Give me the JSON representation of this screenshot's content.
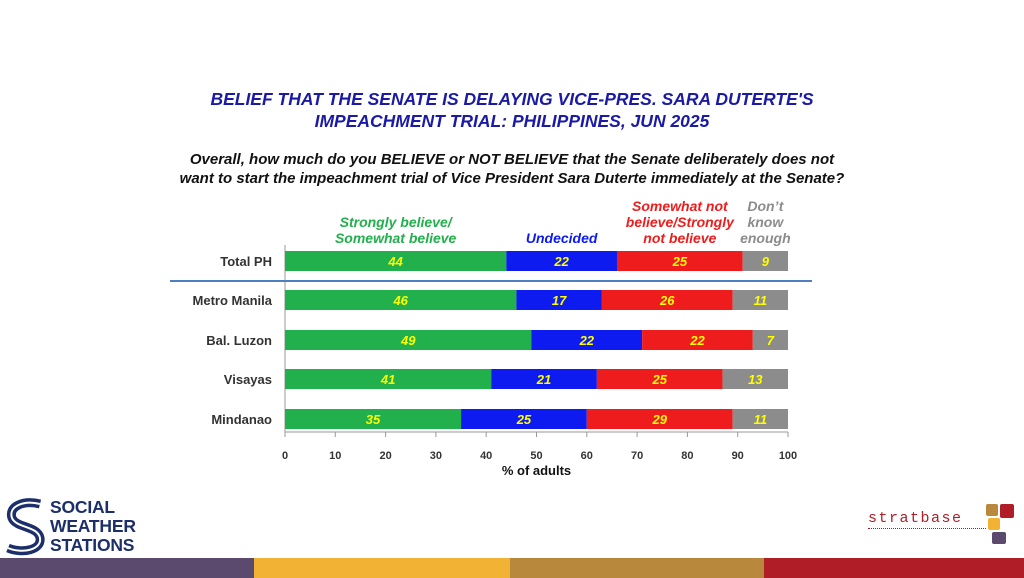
{
  "title_line1": "BELIEF THAT THE SENATE IS DELAYING VICE-PRES. SARA DUTERTE'S",
  "title_line2": "IMPEACHMENT TRIAL: PHILIPPINES, JUN 2025",
  "question_line1": "Overall, how much do you BELIEVE or NOT BELIEVE that the Senate deliberately does not",
  "question_line2": "want to start the impeachment trial of Vice President Sara Duterte immediately at the Senate?",
  "chart_data": {
    "type": "bar",
    "orientation": "horizontal",
    "stacked": true,
    "categories": [
      "Total PH",
      "Metro Manila",
      "Bal. Luzon",
      "Visayas",
      "Mindanao"
    ],
    "series": [
      {
        "name": "Strongly believe/ Somewhat believe",
        "name_lines": [
          "Strongly believe/",
          "Somewhat believe"
        ],
        "color": "#21b04b",
        "values": [
          44,
          46,
          49,
          41,
          35
        ]
      },
      {
        "name": "Undecided",
        "name_lines": [
          "Undecided"
        ],
        "color": "#0d1bf0",
        "values": [
          22,
          17,
          22,
          21,
          25
        ]
      },
      {
        "name": "Somewhat not believe/Strongly not believe",
        "name_lines": [
          "Somewhat not",
          "believe/Strongly",
          "not believe"
        ],
        "color": "#ee1c1c",
        "values": [
          25,
          26,
          22,
          25,
          29
        ]
      },
      {
        "name": "Don't know enough",
        "name_lines": [
          "Don’t",
          "know",
          "enough"
        ],
        "color": "#8c8c8c",
        "values": [
          9,
          11,
          7,
          13,
          11
        ]
      }
    ],
    "xlabel": "% of adults",
    "xlim": [
      0,
      100
    ],
    "xticks": [
      0,
      10,
      20,
      30,
      40,
      50,
      60,
      70,
      80,
      90,
      100
    ],
    "label_color": "#ffff00",
    "grid": false,
    "legend": "top, above each segment",
    "separator_after": "Total PH"
  },
  "logos": {
    "sws_lines": [
      "SOCIAL",
      "WEATHER",
      "STATIONS"
    ],
    "stratbase": "stratbase"
  },
  "footer_colors": [
    "#5b4a6e",
    "#f2b233",
    "#b8893c",
    "#b01d27"
  ]
}
